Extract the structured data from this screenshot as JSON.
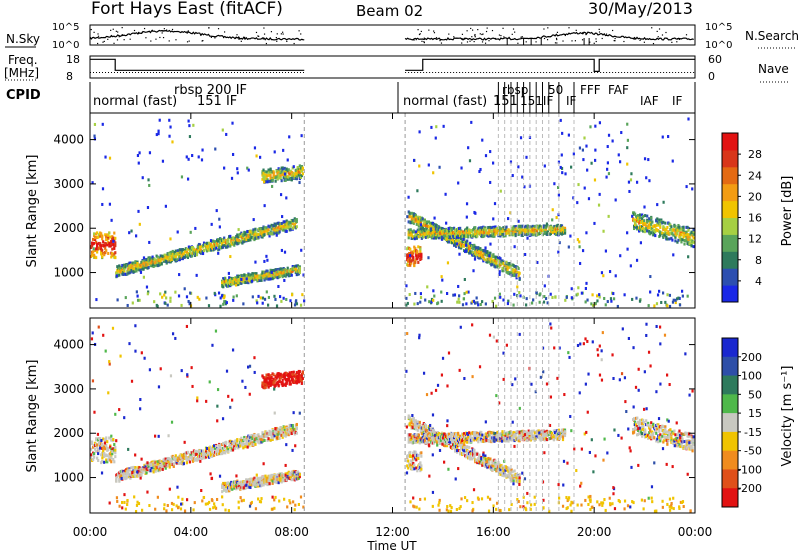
{
  "header": {
    "radar": "Fort Hays East (fitACF)",
    "beam": "Beam 02",
    "date": "30/May/2013"
  },
  "chart_data": {
    "type": "heatmap",
    "xlabel": "Time UT",
    "x_ticks": [
      "00:00",
      "04:00",
      "08:00",
      "12:00",
      "16:00",
      "20:00",
      "00:00"
    ],
    "x_range_hours": [
      0,
      24
    ],
    "data_gaps_hours": [
      [
        8.5,
        12.5
      ]
    ],
    "scan_boundaries_hours": [
      16.2,
      16.45,
      16.7,
      16.95,
      17.2,
      17.45,
      17.7,
      17.95,
      18.2,
      18.6,
      19.2
    ],
    "top_panels": {
      "noise": {
        "left_label": "N.Sky",
        "right_label": "N.Search",
        "left_ticks": [
          "10^5",
          "10^0"
        ],
        "right_ticks": [
          "10^5",
          "10^0"
        ]
      },
      "freq": {
        "left_label": "Freq.",
        "left_unit": "[MHz]",
        "right_label": "Nave",
        "left_ticks": [
          "18",
          "8"
        ],
        "right_ticks": [
          "60",
          "0"
        ],
        "freq_mhz": [
          {
            "start": 0,
            "end": 1,
            "value": 16.5
          },
          {
            "start": 1,
            "end": 8.5,
            "value": 11.5
          },
          {
            "start": 12.5,
            "end": 13.2,
            "value": 11.5
          },
          {
            "start": 13.2,
            "end": 20.0,
            "value": 16.5
          },
          {
            "start": 20.0,
            "end": 20.2,
            "value": 11.0
          },
          {
            "start": 20.2,
            "end": 24,
            "value": 16.5
          }
        ],
        "nave_dotted": 15
      },
      "cpid": {
        "label": "CPID",
        "entries": [
          "normal (fast)",
          "rbsp 200 IF",
          "151 IF",
          "normal (fast)",
          "151",
          "rbsp",
          "151IF",
          "50",
          "IF",
          "FFF",
          "FAF",
          "IAF",
          "IF"
        ]
      }
    },
    "panels": [
      {
        "parameter": "power",
        "ylabel": "Slant Range [km]",
        "yticks": [
          1000,
          2000,
          3000,
          4000
        ],
        "ylim": [
          200,
          4600
        ],
        "colorbar_label": "Power [dB]",
        "colorbar_ticks": [
          4,
          8,
          12,
          16,
          20,
          24,
          28
        ],
        "colorbar_range": [
          0,
          32
        ],
        "colorbar_colors": [
          "#1a28e6",
          "#2c4fb0",
          "#2e7a5c",
          "#59a45a",
          "#a6d043",
          "#f0c400",
          "#f39c12",
          "#e46a12",
          "#d8361a",
          "#e21212"
        ]
      },
      {
        "parameter": "velocity",
        "ylabel": "Slant Range [km]",
        "yticks": [
          1000,
          2000,
          3000,
          4000
        ],
        "ylim": [
          200,
          4600
        ],
        "colorbar_label": "Velocity [m s⁻¹]",
        "colorbar_ticks": [
          200,
          100,
          50,
          15,
          -15,
          -50,
          -100,
          -200
        ],
        "colorbar_colors": [
          "#1a28d0",
          "#2e4fa8",
          "#2e7a5c",
          "#4fb84a",
          "#c8c8c0",
          "#f0c400",
          "#f08c1e",
          "#e0501a",
          "#e21212"
        ]
      }
    ],
    "backscatter_bands_km": [
      {
        "start": 0,
        "end": 1,
        "r0": 1650,
        "r1": 1650,
        "half_width": 280
      },
      {
        "start": 1,
        "end": 8.2,
        "r0": 1050,
        "r1": 2150,
        "half_width": 120
      },
      {
        "start": 5.2,
        "end": 8.3,
        "r0": 800,
        "r1": 1100,
        "half_width": 100
      },
      {
        "start": 6.8,
        "end": 8.4,
        "r0": 3200,
        "r1": 3300,
        "half_width": 150
      },
      {
        "start": 12.5,
        "end": 13.1,
        "r0": 1400,
        "r1": 1400,
        "half_width": 220
      },
      {
        "start": 12.6,
        "end": 17.0,
        "r0": 2300,
        "r1": 1000,
        "half_width": 130
      },
      {
        "start": 12.6,
        "end": 18.8,
        "r0": 1900,
        "r1": 2000,
        "half_width": 110
      },
      {
        "start": 21.5,
        "end": 24,
        "r0": 2200,
        "r1": 1800,
        "half_width": 200
      }
    ]
  }
}
